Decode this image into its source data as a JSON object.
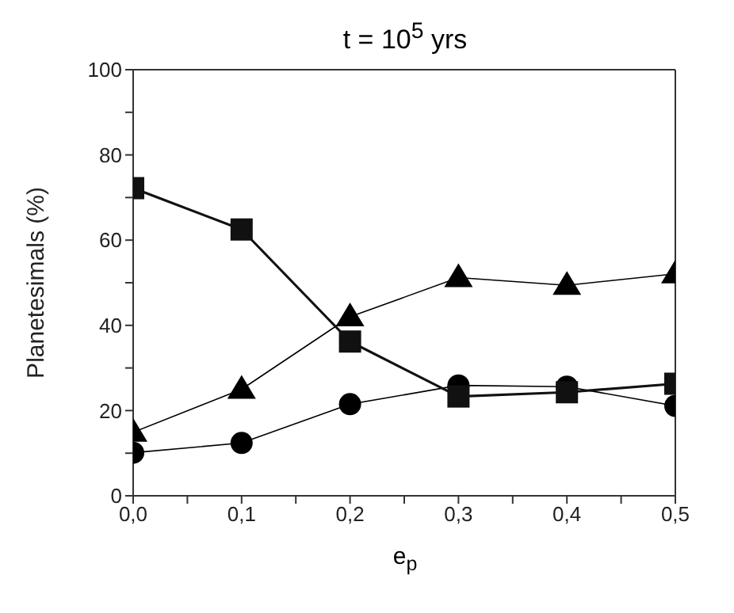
{
  "chart_data": {
    "type": "line",
    "title": "t = 10$^{5}$ yrs",
    "xlabel": "e$_{p}$",
    "ylabel": "Planetesimals (%)",
    "x": [
      0,
      0.1,
      0.2,
      0.3,
      0.4,
      0.5
    ],
    "series": [
      {
        "color": "#111111",
        "marker": "square",
        "values": [
          72.2,
          62.5,
          36.2,
          23.3,
          24.3,
          26.3
        ]
      },
      {
        "color": "#000000",
        "marker": "triangle",
        "values": [
          14.9,
          25,
          42,
          51.2,
          49.4,
          52.1
        ]
      },
      {
        "color": "#000000",
        "marker": "circle",
        "values": [
          10.1,
          12.4,
          21.5,
          25.9,
          25.6,
          21.1
        ]
      }
    ],
    "xlim": [
      0,
      0.5
    ],
    "xticks": [
      {
        "value": 0,
        "label": "0,0"
      },
      {
        "value": 0.05,
        "label": null
      },
      {
        "value": 0.1,
        "label": "0,1"
      },
      {
        "value": 0.15,
        "label": null
      },
      {
        "value": 0.2,
        "label": "0,2"
      },
      {
        "value": 0.25,
        "label": null
      },
      {
        "value": 0.3,
        "label": "0,3"
      },
      {
        "value": 0.35,
        "label": null
      },
      {
        "value": 0.4,
        "label": "0,4"
      },
      {
        "value": 0.45,
        "label": null
      },
      {
        "value": 0.5,
        "label": "0,5"
      }
    ],
    "ylim": [
      0,
      100
    ],
    "yticks": [
      0,
      {
        "value": 10,
        "label": null
      },
      20,
      {
        "value": 30,
        "label": null
      },
      40,
      {
        "value": 50,
        "label": null
      },
      60,
      {
        "value": 70,
        "label": null
      },
      80,
      {
        "value": 90,
        "label": null
      },
      100
    ],
    "grid": false,
    "legend": false
  }
}
